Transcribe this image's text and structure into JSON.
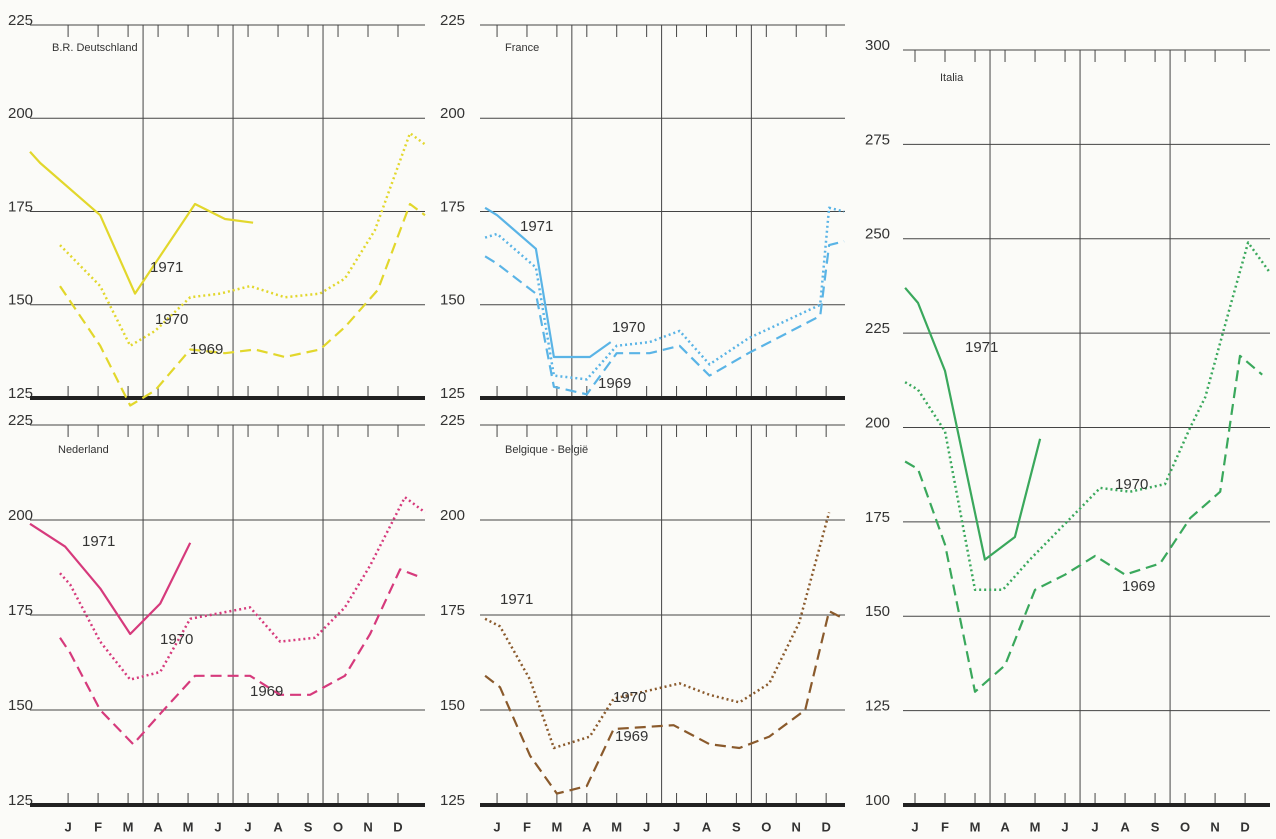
{
  "chart_data": [
    {
      "type": "line",
      "title": "B.R. Deutschland",
      "color": "#e2d72c",
      "grid": true,
      "xlim": [
        -0.27,
        12.9
      ],
      "xticks": [
        1,
        2,
        3,
        4,
        5,
        6,
        7,
        8,
        9,
        10,
        11,
        12
      ],
      "ylim": [
        125,
        225
      ],
      "yticks": [
        125,
        150,
        175,
        200,
        225
      ],
      "series": [
        {
          "name": "1971",
          "style": "solid",
          "x": [
            -0.27,
            0.07,
            2.07,
            3.23,
            5.23,
            6.23,
            7.17
          ],
          "values": [
            191,
            188,
            174,
            153,
            177,
            173,
            172
          ]
        },
        {
          "name": "1970",
          "style": "dotted",
          "x": [
            0.73,
            2.07,
            3.07,
            3.9,
            5.07,
            6.07,
            7.07,
            8.23,
            9.4,
            10.23,
            11.23,
            12.4,
            12.9
          ],
          "values": [
            166,
            155,
            139,
            143,
            152,
            153,
            155,
            152,
            153,
            157,
            170,
            196,
            193
          ]
        },
        {
          "name": "1969",
          "style": "dashed",
          "x": [
            0.73,
            2.07,
            3.07,
            3.9,
            5.07,
            6.23,
            7.23,
            8.23,
            9.4,
            10.23,
            11.33,
            12.4,
            12.9
          ],
          "values": [
            155,
            139,
            123,
            127,
            138,
            137,
            138,
            136,
            138,
            144,
            154,
            177,
            174
          ]
        }
      ]
    },
    {
      "type": "line",
      "title": "France",
      "color": "#5ab4e6",
      "grid": true,
      "xlim": [
        0.43,
        12.63
      ],
      "xticks": [
        1,
        2,
        3,
        4,
        5,
        6,
        7,
        8,
        9,
        10,
        11,
        12
      ],
      "ylim": [
        125,
        225
      ],
      "yticks": [
        125,
        150,
        175,
        200,
        225
      ],
      "series": [
        {
          "name": "1971",
          "style": "solid",
          "x": [
            0.6,
            1,
            2.3,
            2.9,
            4.1,
            4.8
          ],
          "values": [
            176,
            174,
            165,
            136,
            136,
            140
          ]
        },
        {
          "name": "1970",
          "style": "dotted",
          "x": [
            0.6,
            1,
            2.3,
            2.9,
            4,
            5,
            6.1,
            7.1,
            8.1,
            9.4,
            11.8,
            12.1,
            12.6
          ],
          "values": [
            168,
            169,
            160,
            131,
            130,
            139,
            140,
            143,
            134,
            141,
            150,
            176,
            175
          ]
        },
        {
          "name": "1969",
          "style": "dashed",
          "x": [
            0.6,
            1,
            2.3,
            2.9,
            4,
            5,
            6.1,
            7.1,
            8.1,
            9.4,
            11.8,
            12.1,
            12.6
          ],
          "values": [
            163,
            161,
            153,
            128,
            126,
            137,
            137,
            139,
            131,
            137,
            147,
            166,
            167
          ]
        }
      ]
    },
    {
      "type": "line",
      "title": "Nederland",
      "color": "#d63a7c",
      "grid": true,
      "xlim": [
        -0.27,
        12.9
      ],
      "xticks": [
        {
          "value": 1,
          "label": "J"
        },
        {
          "value": 2,
          "label": "F"
        },
        {
          "value": 3,
          "label": "M"
        },
        {
          "value": 4,
          "label": "A"
        },
        {
          "value": 5,
          "label": "M"
        },
        {
          "value": 6,
          "label": "J"
        },
        {
          "value": 7,
          "label": "J"
        },
        {
          "value": 8,
          "label": "A"
        },
        {
          "value": 9,
          "label": "S"
        },
        {
          "value": 10,
          "label": "O"
        },
        {
          "value": 11,
          "label": "N"
        },
        {
          "value": 12,
          "label": "D"
        }
      ],
      "ylim": [
        125,
        225
      ],
      "yticks": [
        125,
        150,
        175,
        200,
        225
      ],
      "series": [
        {
          "name": "1971",
          "style": "solid",
          "x": [
            -0.27,
            0.9,
            2.07,
            3.07,
            4.07,
            5.07
          ],
          "values": [
            199,
            193,
            182,
            170,
            178,
            194
          ]
        },
        {
          "name": "1970",
          "style": "dotted",
          "x": [
            0.73,
            1.07,
            2.07,
            3.07,
            4.07,
            5.07,
            7.07,
            8.07,
            9.23,
            10.23,
            11.07,
            12.23,
            12.9
          ],
          "values": [
            186,
            183,
            168,
            158,
            160,
            174,
            177,
            168,
            169,
            177,
            188,
            206,
            202
          ]
        },
        {
          "name": "1969",
          "style": "dashed",
          "x": [
            0.73,
            1.07,
            2.07,
            3.17,
            4.07,
            5.23,
            7.07,
            8.07,
            9.07,
            10.23,
            11.07,
            12.07,
            12.73
          ],
          "values": [
            169,
            165,
            150,
            141,
            149,
            159,
            159,
            154,
            154,
            159,
            170,
            187,
            185
          ]
        }
      ]
    },
    {
      "type": "line",
      "title": "Belgique - België",
      "color": "#8a5a2c",
      "grid": true,
      "xlim": [
        0.43,
        12.63
      ],
      "xticks": [
        {
          "value": 1,
          "label": "J"
        },
        {
          "value": 2,
          "label": "F"
        },
        {
          "value": 3,
          "label": "M"
        },
        {
          "value": 4,
          "label": "A"
        },
        {
          "value": 5,
          "label": "M"
        },
        {
          "value": 6,
          "label": "J"
        },
        {
          "value": 7,
          "label": "J"
        },
        {
          "value": 8,
          "label": "A"
        },
        {
          "value": 9,
          "label": "S"
        },
        {
          "value": 10,
          "label": "O"
        },
        {
          "value": 11,
          "label": "N"
        },
        {
          "value": 12,
          "label": "D"
        }
      ],
      "ylim": [
        125,
        225
      ],
      "yticks": [
        125,
        150,
        175,
        200,
        225
      ],
      "series": [
        {
          "name": "1971",
          "style": "solid",
          "x": [],
          "values": []
        },
        {
          "name": "1970",
          "style": "dotted",
          "x": [
            0.6,
            1.1,
            2.1,
            2.9,
            4.1,
            4.9,
            7.1,
            8.1,
            9.1,
            10.1,
            11.1,
            12.1
          ],
          "values": [
            174,
            172,
            158,
            140,
            143,
            153,
            157,
            154,
            152,
            157,
            173,
            202
          ]
        },
        {
          "name": "1969",
          "style": "dashed",
          "x": [
            0.6,
            1.1,
            2.1,
            3,
            4,
            4.9,
            6.9,
            8.1,
            9.1,
            10.1,
            11.3,
            12.1,
            12.6
          ],
          "values": [
            159,
            156,
            138,
            128,
            130,
            145,
            146,
            141,
            140,
            143,
            150,
            176,
            174
          ]
        }
      ]
    },
    {
      "type": "line",
      "title": "Italia",
      "color": "#3aa85c",
      "grid": true,
      "xlim": [
        0.6,
        12.83
      ],
      "xticks": [
        {
          "value": 1,
          "label": "J"
        },
        {
          "value": 2,
          "label": "F"
        },
        {
          "value": 3,
          "label": "M"
        },
        {
          "value": 4,
          "label": "A"
        },
        {
          "value": 5,
          "label": "M"
        },
        {
          "value": 6,
          "label": "J"
        },
        {
          "value": 7,
          "label": "J"
        },
        {
          "value": 8,
          "label": "A"
        },
        {
          "value": 9,
          "label": "S"
        },
        {
          "value": 10,
          "label": "O"
        },
        {
          "value": 11,
          "label": "N"
        },
        {
          "value": 12,
          "label": "D"
        }
      ],
      "ylim": [
        100,
        300
      ],
      "yticks": [
        100,
        125,
        150,
        175,
        200,
        225,
        250,
        275,
        300
      ],
      "series": [
        {
          "name": "1971",
          "style": "solid",
          "x": [
            0.67,
            1.1,
            2,
            3.33,
            4.33,
            5.17
          ],
          "values": [
            237,
            233,
            215,
            165,
            171,
            197
          ]
        },
        {
          "name": "1970",
          "style": "dotted",
          "x": [
            0.67,
            1.1,
            2,
            3,
            3.93,
            4.83,
            7.17,
            8.17,
            9.33,
            10.17,
            10.67,
            11.5,
            12.1,
            12.83
          ],
          "values": [
            212,
            210,
            199,
            157,
            157,
            165,
            184,
            183,
            185,
            200,
            208,
            232,
            249,
            241
          ]
        },
        {
          "name": "1969",
          "style": "dashed",
          "x": [
            0.67,
            1.1,
            2,
            3,
            4,
            5,
            6,
            7,
            8,
            9.17,
            10.17,
            11.17,
            11.83,
            12.57
          ],
          "values": [
            191,
            189,
            169,
            130,
            137,
            157,
            161,
            166,
            161,
            164,
            176,
            183,
            219,
            214
          ]
        }
      ]
    }
  ]
}
